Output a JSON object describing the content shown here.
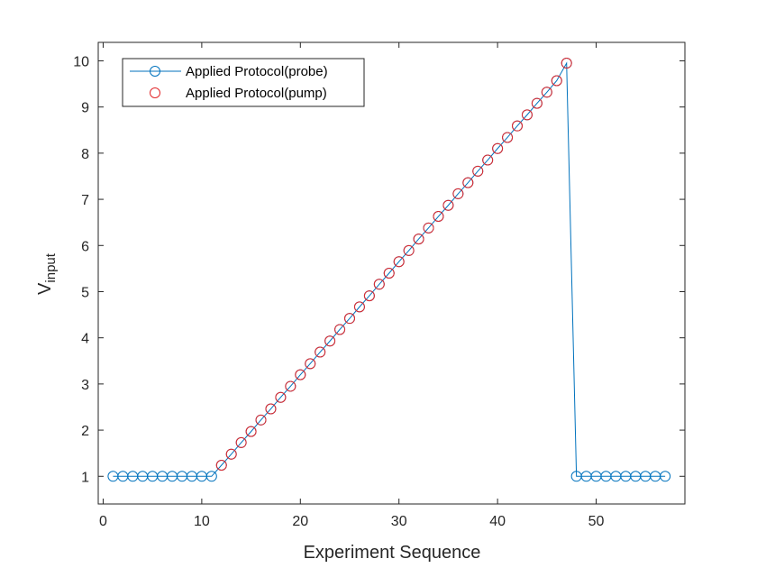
{
  "chart_data": {
    "type": "line",
    "title": "",
    "xlabel": "Experiment Sequence",
    "ylabel_main": "V",
    "ylabel_sub": "input",
    "xlim": [
      -0.5,
      59
    ],
    "ylim": [
      0.4,
      10.4
    ],
    "xticks": [
      0,
      10,
      20,
      30,
      40,
      50
    ],
    "yticks": [
      1,
      2,
      3,
      4,
      5,
      6,
      7,
      8,
      9,
      10
    ],
    "grid": false,
    "legend_position": "top-left",
    "colors": {
      "probe": "#0072BD",
      "pump": "#E2282B",
      "axis": "#262626"
    },
    "series": [
      {
        "name": "Applied Protocol(probe)",
        "style": "line-circle",
        "x": [
          1,
          2,
          3,
          4,
          5,
          6,
          7,
          8,
          9,
          10,
          11,
          12,
          13,
          14,
          15,
          16,
          17,
          18,
          19,
          20,
          21,
          22,
          23,
          24,
          25,
          26,
          27,
          28,
          29,
          30,
          31,
          32,
          33,
          34,
          35,
          36,
          37,
          38,
          39,
          40,
          41,
          42,
          43,
          44,
          45,
          46,
          47,
          48,
          49,
          50,
          51,
          52,
          53,
          54,
          55,
          56,
          57
        ],
        "values": [
          1,
          1,
          1,
          1,
          1,
          1,
          1,
          1,
          1,
          1,
          1,
          1.24,
          1.48,
          1.73,
          1.97,
          2.22,
          2.46,
          2.71,
          2.95,
          3.2,
          3.44,
          3.69,
          3.93,
          4.18,
          4.42,
          4.67,
          4.91,
          5.16,
          5.4,
          5.65,
          5.89,
          6.14,
          6.38,
          6.63,
          6.87,
          7.12,
          7.36,
          7.61,
          7.85,
          8.1,
          8.34,
          8.59,
          8.83,
          9.08,
          9.32,
          9.57,
          9.95,
          1,
          1,
          1,
          1,
          1,
          1,
          1,
          1,
          1,
          1
        ]
      },
      {
        "name": "Applied Protocol(pump)",
        "style": "circle",
        "x": [
          12,
          13,
          14,
          15,
          16,
          17,
          18,
          19,
          20,
          21,
          22,
          23,
          24,
          25,
          26,
          27,
          28,
          29,
          30,
          31,
          32,
          33,
          34,
          35,
          36,
          37,
          38,
          39,
          40,
          41,
          42,
          43,
          44,
          45,
          46,
          47
        ],
        "values": [
          1.24,
          1.48,
          1.73,
          1.97,
          2.22,
          2.46,
          2.71,
          2.95,
          3.2,
          3.44,
          3.69,
          3.93,
          4.18,
          4.42,
          4.67,
          4.91,
          5.16,
          5.4,
          5.65,
          5.89,
          6.14,
          6.38,
          6.63,
          6.87,
          7.12,
          7.36,
          7.61,
          7.85,
          8.1,
          8.34,
          8.59,
          8.83,
          9.08,
          9.32,
          9.57,
          9.95
        ]
      }
    ]
  }
}
